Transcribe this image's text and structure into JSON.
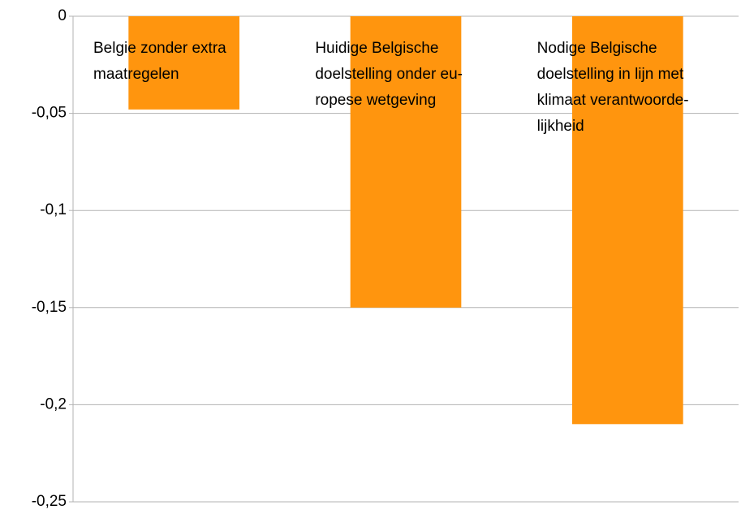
{
  "chart_data": {
    "type": "bar",
    "categories": [
      "Belgie zonder extra\nmaatregelen",
      "Huidige Belgische\ndoelstelling onder eu-\nropese wetgeving",
      "Nodige Belgische\ndoelstelling in lijn met\nklimaat verantwoorde-\nlijkheid"
    ],
    "values": [
      -0.048,
      -0.15,
      -0.21
    ],
    "color": "#ff950e",
    "ylim": [
      -0.25,
      0
    ],
    "yticks": [
      0,
      {
        "value": -0.05,
        "label": "-0,05"
      },
      {
        "value": -0.1,
        "label": "-0,1"
      },
      {
        "value": -0.15,
        "label": "-0,15"
      },
      {
        "value": -0.2,
        "label": "-0,2"
      },
      {
        "value": -0.25,
        "label": "-0,25"
      }
    ],
    "grid": true
  }
}
